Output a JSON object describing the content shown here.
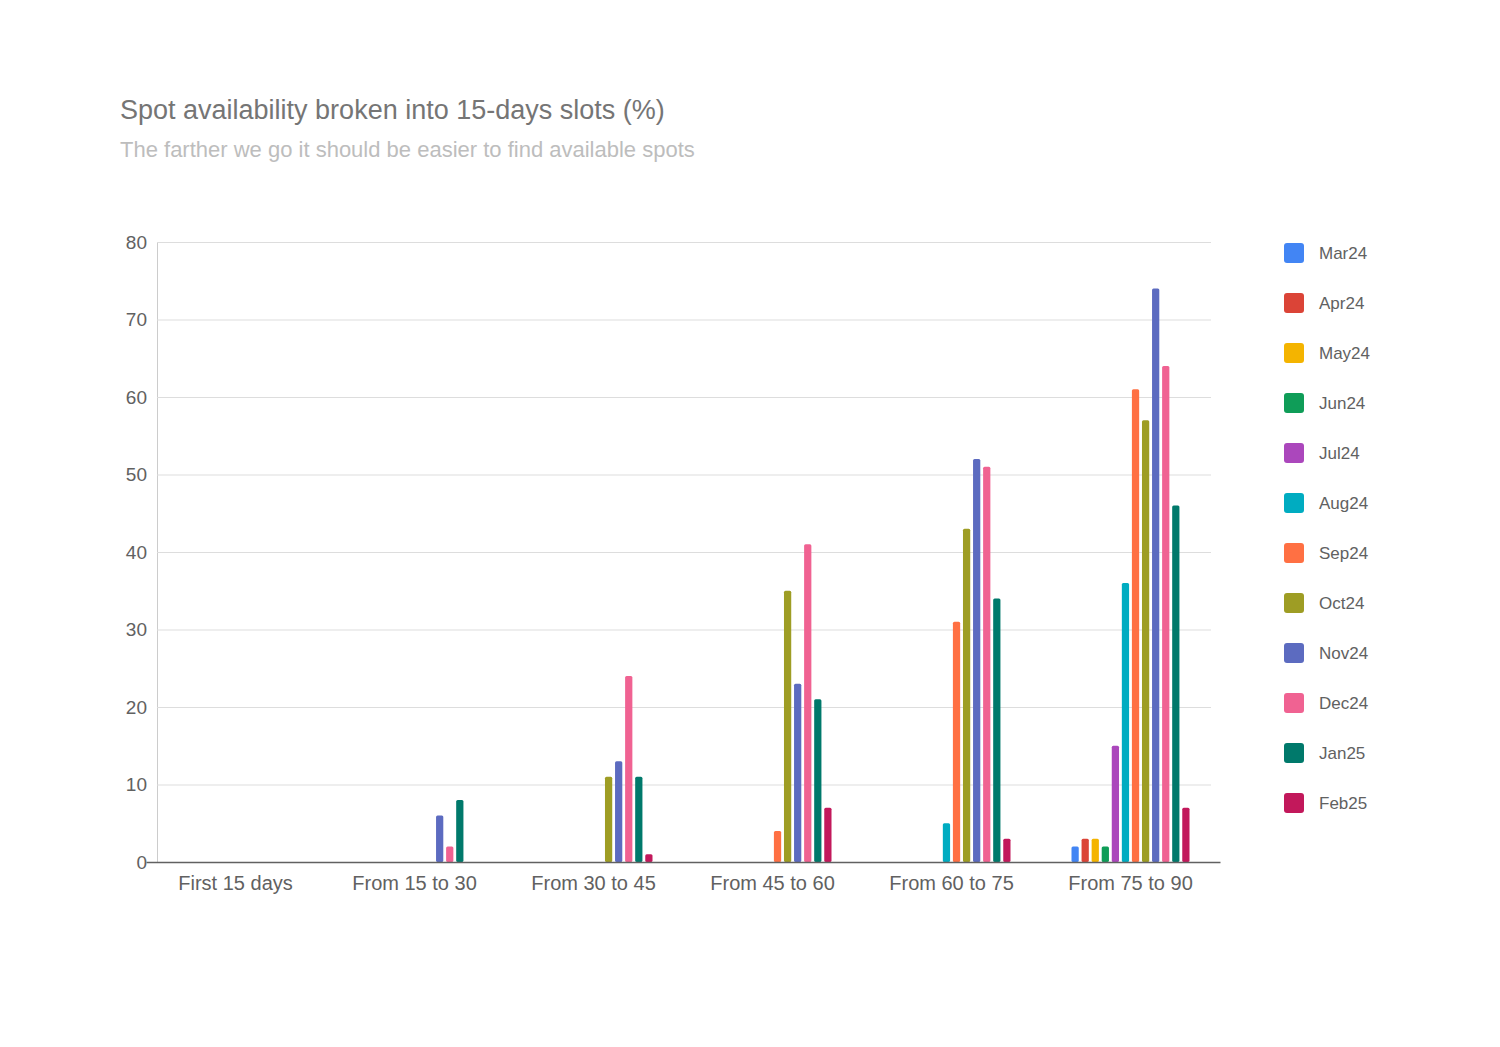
{
  "chart_data": {
    "type": "bar",
    "title": "Spot availability broken into 15-days slots (%)",
    "subtitle": "The farther we go it should be easier to find available spots",
    "categories": [
      "First 15 days",
      "From 15 to 30",
      "From 30 to 45",
      "From 45 to 60",
      "From 60 to 75",
      "From 75 to 90"
    ],
    "series": [
      {
        "name": "Mar24",
        "color": "#4285f4",
        "values": [
          0,
          0,
          0,
          0,
          0,
          2
        ]
      },
      {
        "name": "Apr24",
        "color": "#db4437",
        "values": [
          0,
          0,
          0,
          0,
          0,
          3
        ]
      },
      {
        "name": "May24",
        "color": "#f4b400",
        "values": [
          0,
          0,
          0,
          0,
          0,
          3
        ]
      },
      {
        "name": "Jun24",
        "color": "#0f9d58",
        "values": [
          0,
          0,
          0,
          0,
          0,
          2
        ]
      },
      {
        "name": "Jul24",
        "color": "#ab47bc",
        "values": [
          0,
          0,
          0,
          0,
          0,
          15
        ]
      },
      {
        "name": "Aug24",
        "color": "#00acc1",
        "values": [
          0,
          0,
          0,
          0,
          5,
          36
        ]
      },
      {
        "name": "Sep24",
        "color": "#ff7043",
        "values": [
          0,
          0,
          0,
          4,
          31,
          61
        ]
      },
      {
        "name": "Oct24",
        "color": "#9e9d24",
        "values": [
          0,
          0,
          11,
          35,
          43,
          57
        ]
      },
      {
        "name": "Nov24",
        "color": "#5c6bc0",
        "values": [
          0,
          6,
          13,
          23,
          52,
          74
        ]
      },
      {
        "name": "Dec24",
        "color": "#f06292",
        "values": [
          0,
          2,
          24,
          41,
          51,
          64
        ]
      },
      {
        "name": "Jan25",
        "color": "#00796b",
        "values": [
          0,
          8,
          11,
          21,
          34,
          46
        ]
      },
      {
        "name": "Feb25",
        "color": "#c2185b",
        "values": [
          0,
          0,
          1,
          7,
          3,
          7
        ]
      }
    ],
    "ylim": [
      0,
      80
    ],
    "yticks": [
      0,
      10,
      20,
      30,
      40,
      50,
      60,
      70,
      80
    ],
    "grid": true,
    "legend": "right"
  }
}
